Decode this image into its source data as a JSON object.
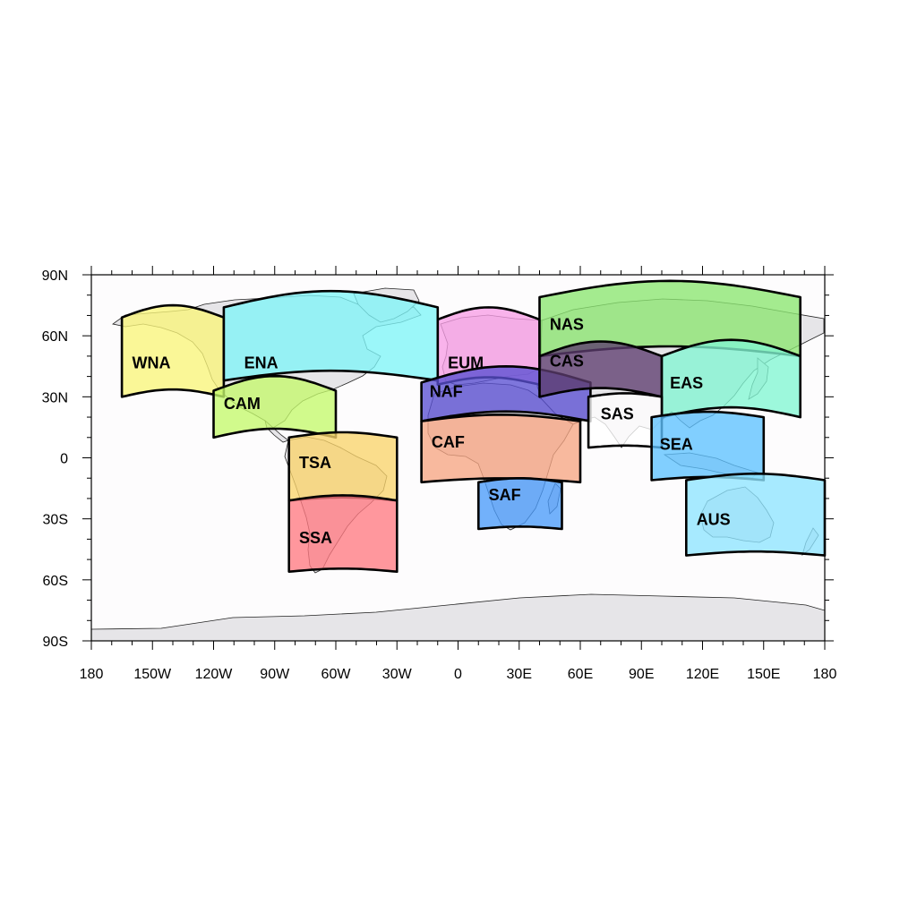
{
  "axes": {
    "x_ticks": [
      {
        "lon": -180,
        "label": "180"
      },
      {
        "lon": -150,
        "label": "150W"
      },
      {
        "lon": -120,
        "label": "120W"
      },
      {
        "lon": -90,
        "label": "90W"
      },
      {
        "lon": -60,
        "label": "60W"
      },
      {
        "lon": -30,
        "label": "30W"
      },
      {
        "lon": 0,
        "label": "0"
      },
      {
        "lon": 30,
        "label": "30E"
      },
      {
        "lon": 60,
        "label": "60E"
      },
      {
        "lon": 90,
        "label": "90E"
      },
      {
        "lon": 120,
        "label": "120E"
      },
      {
        "lon": 150,
        "label": "150E"
      },
      {
        "lon": 180,
        "label": "180"
      }
    ],
    "y_ticks": [
      {
        "lat": 90,
        "label": "90N"
      },
      {
        "lat": 60,
        "label": "60N"
      },
      {
        "lat": 30,
        "label": "30N"
      },
      {
        "lat": 0,
        "label": "0"
      },
      {
        "lat": -30,
        "label": "30S"
      },
      {
        "lat": -60,
        "label": "60S"
      },
      {
        "lat": -90,
        "label": "90S"
      }
    ],
    "lon_range": [
      -180,
      180
    ],
    "lat_range": [
      -90,
      90
    ],
    "projection": "equirectangular"
  },
  "colors": {
    "ocean": "#fdfcfd",
    "land": "#e6e5e8",
    "outline": "#000000"
  },
  "regions": [
    {
      "code": "WNA",
      "lon": [
        -165,
        -115
      ],
      "lat": [
        30,
        69
      ],
      "color": "#f8f57a",
      "label_at": [
        -160,
        44
      ]
    },
    {
      "code": "ENA",
      "lon": [
        -115,
        -10
      ],
      "lat": [
        38,
        74
      ],
      "color": "#7ff5f7",
      "label_at": [
        -105,
        44
      ]
    },
    {
      "code": "CAM",
      "lon": [
        -120,
        -60
      ],
      "lat": [
        10,
        33
      ],
      "color": "#c4f86b",
      "label_at": [
        -115,
        24
      ]
    },
    {
      "code": "TSA",
      "lon": [
        -83,
        -30
      ],
      "lat": [
        -21,
        10
      ],
      "color": "#f9d36c",
      "label_at": [
        -78,
        -5
      ]
    },
    {
      "code": "SSA",
      "lon": [
        -83,
        -30
      ],
      "lat": [
        -56,
        -21
      ],
      "color": "#ff7a82",
      "label_at": [
        -78,
        -42
      ]
    },
    {
      "code": "EUM",
      "lon": [
        -10,
        40
      ],
      "lat": [
        36,
        68
      ],
      "color": "#f79de6",
      "label_at": [
        -5,
        44
      ]
    },
    {
      "code": "NAF",
      "lon": [
        -18,
        65
      ],
      "lat": [
        18,
        37
      ],
      "color": "#5a50d2",
      "label_at": [
        -14,
        30
      ]
    },
    {
      "code": "CAF",
      "lon": [
        -18,
        60
      ],
      "lat": [
        -12,
        18
      ],
      "color": "#f6a583",
      "label_at": [
        -13,
        5
      ]
    },
    {
      "code": "SAF",
      "lon": [
        10,
        51
      ],
      "lat": [
        -35,
        -12
      ],
      "color": "#4a9bfa",
      "label_at": [
        15,
        -21
      ]
    },
    {
      "code": "NAS",
      "lon": [
        40,
        168
      ],
      "lat": [
        50,
        79
      ],
      "color": "#8ae66f",
      "label_at": [
        45,
        63
      ]
    },
    {
      "code": "CAS",
      "lon": [
        40,
        100
      ],
      "lat": [
        30,
        50
      ],
      "color": "#5c3c6e",
      "label_at": [
        45,
        45
      ]
    },
    {
      "code": "EAS",
      "lon": [
        100,
        168
      ],
      "lat": [
        20,
        50
      ],
      "color": "#82f6d2",
      "label_at": [
        104,
        34
      ]
    },
    {
      "code": "SAS",
      "lon": [
        64,
        100
      ],
      "lat": [
        5,
        30
      ],
      "color": "#ffffff",
      "label_at": [
        70,
        19
      ]
    },
    {
      "code": "SEA",
      "lon": [
        95,
        150
      ],
      "lat": [
        -11,
        20
      ],
      "color": "#5ec1ff",
      "label_at": [
        99,
        4
      ]
    },
    {
      "code": "AUS",
      "lon": [
        112,
        180
      ],
      "lat": [
        -48,
        -11
      ],
      "color": "#8ee4ff",
      "label_at": [
        117,
        -33
      ]
    }
  ]
}
